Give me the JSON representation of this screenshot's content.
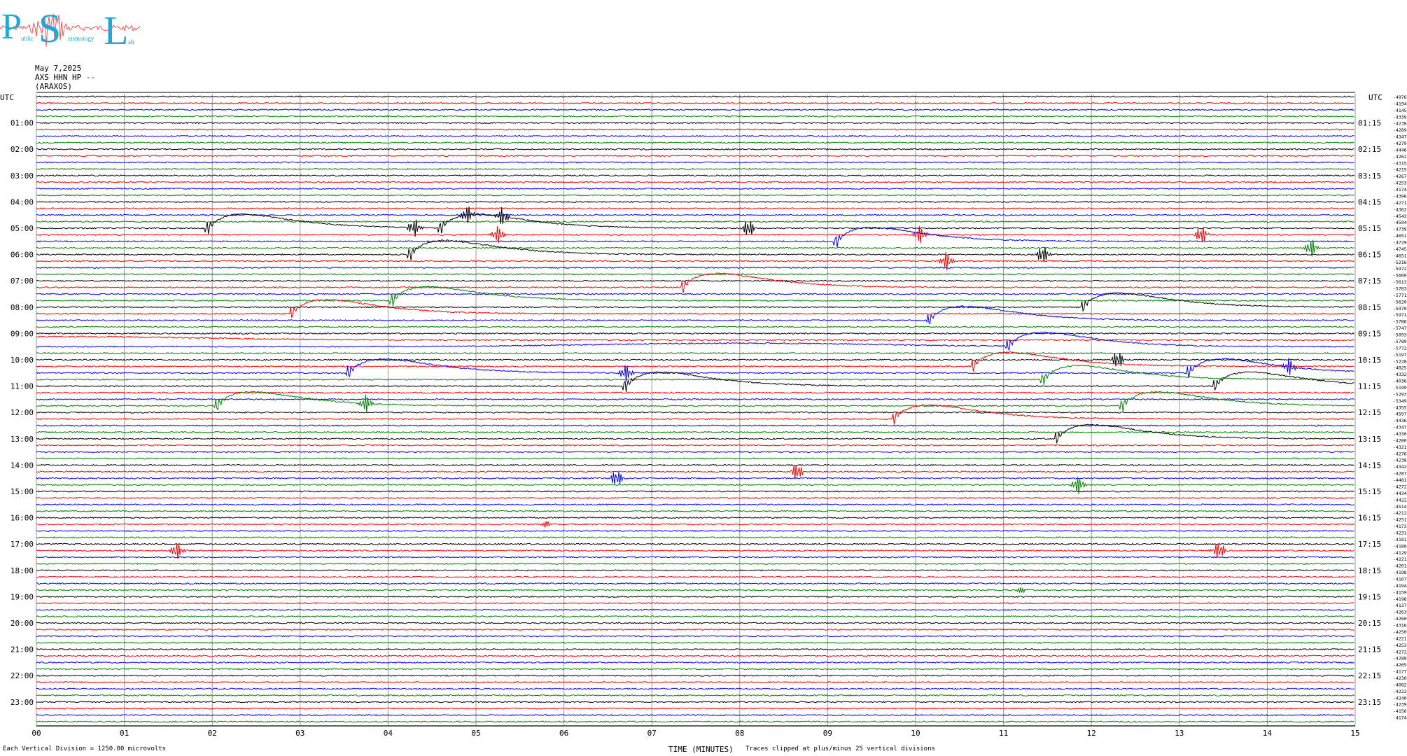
{
  "logo": {
    "letters": [
      "P",
      "S",
      "L"
    ],
    "fragments": [
      "ublic",
      "eismology",
      "ab"
    ]
  },
  "header": {
    "date": "May 7,2025",
    "channel": "AXS HHN HP --",
    "station": "(ARAXOS)"
  },
  "chart_data": {
    "type": "line",
    "title": "",
    "xlabel": "TIME (MINUTES)",
    "x_ticks": [
      "00",
      "01",
      "02",
      "03",
      "04",
      "05",
      "06",
      "07",
      "08",
      "09",
      "10",
      "11",
      "12",
      "13",
      "14",
      "15"
    ],
    "xlim": [
      0,
      15
    ],
    "left_axis_title": "UTC",
    "right_axis_title": "UTC",
    "left_labels": [
      "01:00",
      "02:00",
      "03:00",
      "04:00",
      "05:00",
      "06:00",
      "07:00",
      "08:00",
      "09:00",
      "10:00",
      "11:00",
      "12:00",
      "13:00",
      "14:00",
      "15:00",
      "16:00",
      "17:00",
      "18:00",
      "19:00",
      "20:00",
      "21:00",
      "22:00",
      "23:00"
    ],
    "right_labels": [
      "01:15",
      "02:15",
      "03:15",
      "04:15",
      "05:15",
      "06:15",
      "07:15",
      "08:15",
      "09:15",
      "10:15",
      "11:15",
      "12:15",
      "13:15",
      "14:15",
      "15:15",
      "16:15",
      "17:15",
      "18:15",
      "19:15",
      "20:15",
      "21:15",
      "22:15",
      "23:15"
    ],
    "trace_colors": [
      "#000000",
      "#ff0000",
      "#0000ff",
      "#008000"
    ],
    "trace_count": 96,
    "minutes_per_trace": 15,
    "right_values": [
      "-4976",
      "-4194",
      "-4145",
      "-4339",
      "-4238",
      "-4289",
      "-4347",
      "-4279",
      "-4446",
      "-4262",
      "-4315",
      "-4215",
      "-4267",
      "-4253",
      "-4174",
      "-4396",
      "-4271",
      "-4362",
      "-4543",
      "-4594",
      "-4739",
      "-4651",
      "-4729",
      "-4745",
      "-4651",
      "-5216",
      "-5972",
      "-5660",
      "-5613",
      "-5783",
      "-5771",
      "-5620",
      "-5970",
      "-5971",
      "-5786",
      "-5747",
      "-5093",
      "-5789",
      "-5772",
      "-5197",
      "-5228",
      "-4825",
      "-4332",
      "-4036",
      "-5199",
      "-5293",
      "-5349",
      "-4355",
      "-4597",
      "-4436",
      "-4347",
      "-4330",
      "-4280",
      "-4321",
      "-4276",
      "-4238",
      "-4342",
      "-4287",
      "-4481",
      "-4272",
      "-4434",
      "-4422",
      "-4514",
      "-4212",
      "-4251",
      "-4173",
      "-4231",
      "-4181",
      "-4180",
      "-4129",
      "-4221",
      "-4201",
      "-4198",
      "-4167",
      "-4194",
      "-4159",
      "-4198",
      "-4137",
      "-4263",
      "-4260",
      "-4316",
      "-4250",
      "-4221",
      "-4253",
      "-4272",
      "-4288",
      "-4265",
      "-4177",
      "-4230",
      "-4082",
      "-4222",
      "-4240",
      "-4239",
      "-4156",
      "-4174"
    ],
    "events": [
      {
        "trace": 20,
        "minute": 1.95,
        "kind": "local"
      },
      {
        "trace": 20,
        "minute": 4.3,
        "kind": "burst"
      },
      {
        "trace": 20,
        "minute": 4.6,
        "kind": "local"
      },
      {
        "trace": 20,
        "minute": 4.9,
        "kind": "burst"
      },
      {
        "trace": 20,
        "minute": 5.3,
        "kind": "burst"
      },
      {
        "trace": 20,
        "minute": 8.1,
        "kind": "burst"
      },
      {
        "trace": 21,
        "minute": 5.25,
        "kind": "burst"
      },
      {
        "trace": 21,
        "minute": 10.05,
        "kind": "burst"
      },
      {
        "trace": 21,
        "minute": 13.25,
        "kind": "burst"
      },
      {
        "trace": 22,
        "minute": 9.1,
        "kind": "local"
      },
      {
        "trace": 23,
        "minute": 14.5,
        "kind": "burst"
      },
      {
        "trace": 24,
        "minute": 4.25,
        "kind": "local"
      },
      {
        "trace": 24,
        "minute": 11.45,
        "kind": "burst"
      },
      {
        "trace": 25,
        "minute": 10.35,
        "kind": "burst"
      },
      {
        "trace": 29,
        "minute": 7.35,
        "kind": "local"
      },
      {
        "trace": 31,
        "minute": 4.05,
        "kind": "local"
      },
      {
        "trace": 32,
        "minute": 11.9,
        "kind": "local"
      },
      {
        "trace": 33,
        "minute": 2.9,
        "kind": "local"
      },
      {
        "trace": 34,
        "minute": 10.15,
        "kind": "local"
      },
      {
        "trace": 37,
        "minute": 0.3,
        "kind": "tele"
      },
      {
        "trace": 38,
        "minute": 8.0,
        "kind": "tele"
      },
      {
        "trace": 38,
        "minute": 11.05,
        "kind": "local"
      },
      {
        "trace": 40,
        "minute": 12.3,
        "kind": "burst"
      },
      {
        "trace": 41,
        "minute": 10.65,
        "kind": "local"
      },
      {
        "trace": 42,
        "minute": 3.55,
        "kind": "local"
      },
      {
        "trace": 42,
        "minute": 6.7,
        "kind": "burst"
      },
      {
        "trace": 42,
        "minute": 13.1,
        "kind": "local"
      },
      {
        "trace": 42,
        "minute": 14.25,
        "kind": "burst"
      },
      {
        "trace": 43,
        "minute": 11.45,
        "kind": "local"
      },
      {
        "trace": 44,
        "minute": 6.7,
        "kind": "local"
      },
      {
        "trace": 44,
        "minute": 13.4,
        "kind": "local"
      },
      {
        "trace": 47,
        "minute": 2.05,
        "kind": "local"
      },
      {
        "trace": 47,
        "minute": 3.75,
        "kind": "burst"
      },
      {
        "trace": 47,
        "minute": 12.35,
        "kind": "local"
      },
      {
        "trace": 49,
        "minute": 9.75,
        "kind": "local"
      },
      {
        "trace": 52,
        "minute": 11.6,
        "kind": "local"
      },
      {
        "trace": 57,
        "minute": 8.65,
        "kind": "burst"
      },
      {
        "trace": 58,
        "minute": 6.6,
        "kind": "burst"
      },
      {
        "trace": 59,
        "minute": 11.85,
        "kind": "burst"
      },
      {
        "trace": 65,
        "minute": 5.8,
        "kind": "small"
      },
      {
        "trace": 68,
        "minute": 9.9,
        "kind": "small"
      },
      {
        "trace": 69,
        "minute": 1.6,
        "kind": "burst"
      },
      {
        "trace": 69,
        "minute": 13.45,
        "kind": "burst"
      },
      {
        "trace": 75,
        "minute": 11.2,
        "kind": "small"
      },
      {
        "trace": 82,
        "minute": 4.98,
        "kind": "small"
      }
    ]
  },
  "footer": {
    "scale": "Each Vertical Division = 1250.00 microvolts",
    "clip": "Traces clipped at plus/minus 25 vertical divisions"
  }
}
